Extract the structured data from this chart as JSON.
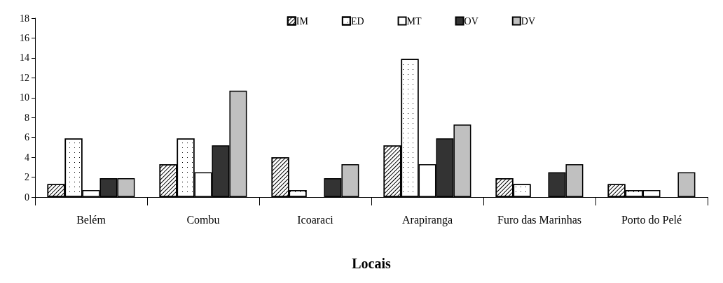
{
  "chart_data": {
    "type": "bar",
    "xlabel": "Locais",
    "categories": [
      "Belém",
      "Combu",
      "Icoaraci",
      "Arapiranga",
      "Furo das Marinhas",
      "Porto do Pelé"
    ],
    "series": [
      {
        "name": "IM",
        "color": "#ffffff",
        "values": [
          1.3,
          3.3,
          4.0,
          5.2,
          1.9,
          1.3
        ]
      },
      {
        "name": "ED",
        "color": "#ffffff",
        "values": [
          5.9,
          5.9,
          0.7,
          13.9,
          1.3,
          0.7
        ]
      },
      {
        "name": "MT",
        "color": "#ffffff",
        "values": [
          0.7,
          2.5,
          null,
          3.3,
          null,
          0.7
        ]
      },
      {
        "name": "OV",
        "color": "#333333",
        "values": [
          1.9,
          5.2,
          1.9,
          5.9,
          2.5,
          null
        ]
      },
      {
        "name": "DV",
        "color": "#c0c0c0",
        "values": [
          1.9,
          10.7,
          3.3,
          7.3,
          3.3,
          2.5
        ]
      }
    ],
    "ylim": [
      0,
      18
    ],
    "yticks": [
      0,
      2,
      4,
      6,
      8,
      10,
      12,
      14,
      16,
      18
    ],
    "grid": false,
    "legend": "top right"
  }
}
